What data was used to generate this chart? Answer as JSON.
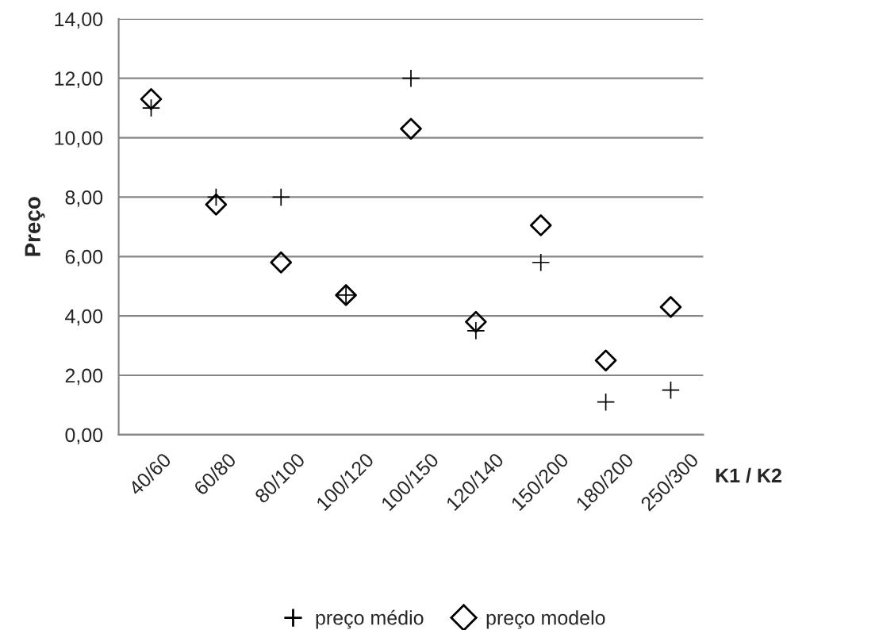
{
  "chart_data": {
    "type": "scatter",
    "xlabel": "K1 / K2",
    "ylabel": "Preço",
    "categories": [
      "40/60",
      "60/80",
      "80/100",
      "100/120",
      "100/150",
      "120/140",
      "150/200",
      "180/200",
      "250/300"
    ],
    "series": [
      {
        "name": "preço médio",
        "color": "#000000",
        "marker": "cross",
        "values": [
          11.0,
          8.0,
          8.0,
          4.7,
          12.0,
          3.5,
          5.8,
          1.1,
          1.5
        ]
      },
      {
        "name": "preço modelo",
        "color": "#000000",
        "marker": "diamond",
        "values": [
          11.3,
          7.75,
          5.8,
          4.7,
          10.3,
          3.8,
          7.05,
          2.5,
          4.3
        ]
      }
    ],
    "ylim": [
      0,
      14
    ],
    "yticks": [
      {
        "value": 0,
        "label": "0,00"
      },
      {
        "value": 2,
        "label": "2,00"
      },
      {
        "value": 4,
        "label": "4,00"
      },
      {
        "value": 6,
        "label": "6,00"
      },
      {
        "value": 8,
        "label": "8,00"
      },
      {
        "value": 10,
        "label": "10,00"
      },
      {
        "value": 12,
        "label": "12,00"
      },
      {
        "value": 14,
        "label": "14,00"
      }
    ],
    "grid": "y",
    "legend": "bottom"
  }
}
